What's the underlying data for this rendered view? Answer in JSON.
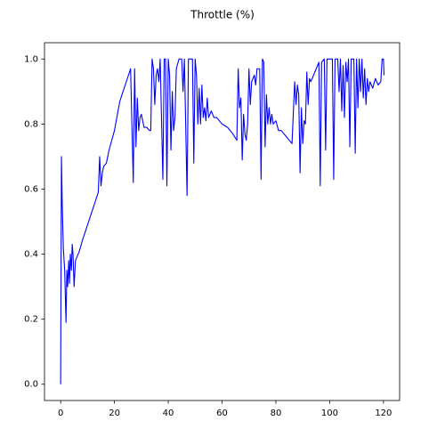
{
  "chart_data": {
    "type": "line",
    "title": "Throttle (%)",
    "series": [
      {
        "color": "#0000ff",
        "x": [
          0,
          0.3,
          0.6,
          1,
          1.5,
          2,
          2.3,
          2.6,
          3,
          3.3,
          3.6,
          4,
          4.3,
          4.6,
          5,
          5.5,
          6,
          7,
          8,
          10,
          12,
          14,
          14.5,
          15,
          15.5,
          16,
          17,
          18,
          20,
          22,
          24,
          26,
          27,
          27.5,
          28,
          28.5,
          29,
          29.5,
          30,
          31,
          32,
          33,
          33.5,
          34,
          34.5,
          35,
          35.5,
          36,
          36.5,
          37,
          38,
          38.5,
          39,
          39.5,
          40,
          40.5,
          41,
          41.5,
          42,
          42.5,
          43,
          44,
          45,
          45.5,
          46,
          47,
          47.5,
          48,
          49,
          49.5,
          50,
          50.5,
          51,
          51.5,
          52,
          52.5,
          53,
          53.5,
          54,
          54.5,
          55,
          56,
          57,
          58,
          60,
          62,
          64,
          65.5,
          66,
          66.5,
          67,
          67.5,
          68,
          68.5,
          69,
          69.5,
          70,
          70.5,
          71,
          72,
          72.5,
          73,
          74,
          74.5,
          75,
          75.5,
          76,
          76.5,
          77,
          77.5,
          78,
          78.5,
          79,
          80,
          81,
          82,
          84,
          86,
          87,
          87.5,
          88,
          88.5,
          89,
          89.5,
          90,
          90.5,
          91,
          91.5,
          92,
          92.5,
          93,
          94,
          95,
          96,
          96.5,
          97,
          98,
          98.5,
          99,
          100,
          101,
          101.5,
          102,
          103,
          103.5,
          104,
          104.5,
          105,
          105.5,
          106,
          106.5,
          107,
          107.5,
          108,
          109,
          109.5,
          110,
          110.5,
          111,
          111.5,
          112,
          112.5,
          113,
          113.5,
          114,
          114.5,
          115,
          116,
          117,
          118,
          119,
          119.5,
          120,
          120.2
        ],
        "values": [
          0,
          0.7,
          0.55,
          0.42,
          0.35,
          0.19,
          0.35,
          0.3,
          0.38,
          0.31,
          0.4,
          0.35,
          0.43,
          0.4,
          0.3,
          0.38,
          0.39,
          0.41,
          0.44,
          0.49,
          0.54,
          0.59,
          0.7,
          0.61,
          0.65,
          0.67,
          0.68,
          0.72,
          0.78,
          0.87,
          0.92,
          0.97,
          0.62,
          0.97,
          0.73,
          0.88,
          0.78,
          0.82,
          0.83,
          0.79,
          0.79,
          0.78,
          0.78,
          1,
          0.97,
          0.86,
          0.95,
          0.97,
          0.93,
          1,
          0.63,
          1,
          1,
          0.61,
          1,
          0.95,
          0.72,
          0.9,
          0.78,
          0.82,
          0.97,
          1,
          1,
          0.9,
          1,
          0.58,
          1,
          1,
          1,
          0.68,
          1,
          0.95,
          0.8,
          0.91,
          0.8,
          0.92,
          0.82,
          0.85,
          0.81,
          0.88,
          0.82,
          0.84,
          0.82,
          0.82,
          0.8,
          0.79,
          0.77,
          0.75,
          0.97,
          0.85,
          0.88,
          0.69,
          0.83,
          0.77,
          0.75,
          0.8,
          0.97,
          0.86,
          0.93,
          0.95,
          0.92,
          0.97,
          0.97,
          0.63,
          1,
          0.99,
          0.73,
          0.89,
          0.8,
          0.85,
          0.8,
          0.83,
          0.8,
          0.81,
          0.78,
          0.78,
          0.76,
          0.74,
          0.93,
          0.86,
          0.92,
          0.89,
          0.65,
          0.85,
          0.74,
          0.81,
          0.8,
          0.96,
          0.86,
          0.94,
          0.93,
          0.95,
          0.97,
          0.99,
          0.61,
          0.99,
          1,
          0.72,
          1,
          1,
          1,
          0.63,
          1,
          1,
          0.9,
          1,
          0.84,
          0.98,
          0.82,
          0.99,
          0.93,
          1,
          0.73,
          1,
          1,
          0.71,
          1,
          0.85,
          1,
          0.9,
          1,
          0.88,
          0.97,
          0.86,
          0.94,
          0.9,
          0.93,
          0.91,
          0.94,
          0.92,
          0.93,
          1,
          1,
          0.95
        ]
      }
    ],
    "xlim": [
      -6,
      126
    ],
    "ylim": [
      -0.05,
      1.05
    ],
    "xticks": [
      0,
      20,
      40,
      60,
      80,
      100,
      120
    ],
    "yticks": [
      {
        "value": 0,
        "label": "0.0"
      },
      0.2,
      0.4,
      0.6,
      0.8,
      {
        "value": 1,
        "label": "1.0"
      }
    ],
    "grid": false
  }
}
